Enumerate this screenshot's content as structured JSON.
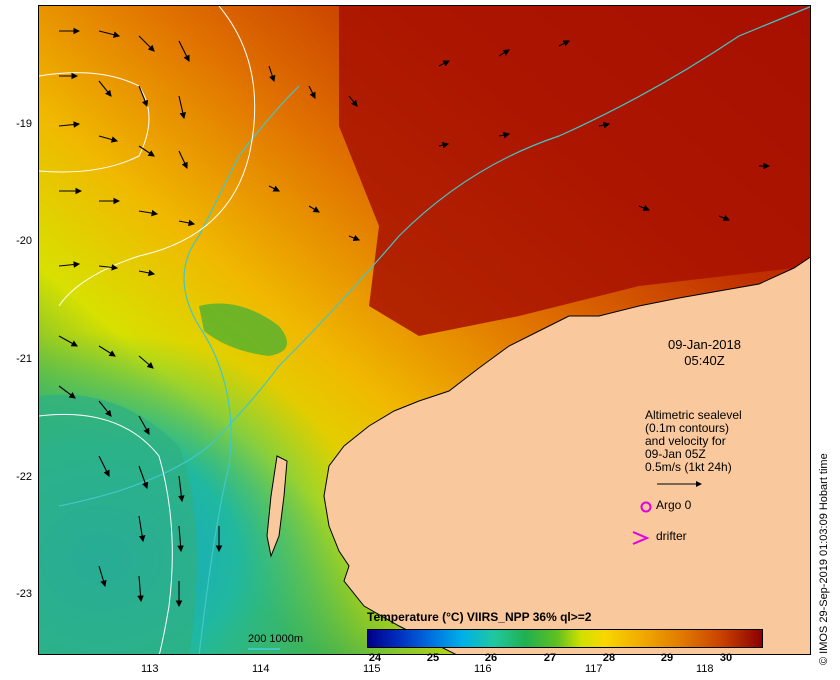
{
  "map": {
    "date": "09-Jan-2018",
    "time": "05:40Z",
    "legend_lines": [
      "Altimetric sealevel",
      "(0.1m contours)",
      "and velocity for",
      "09-Jan 05Z",
      "0.5m/s (1kt 24h)"
    ],
    "argo_label": "Argo 0",
    "drifter_label": "drifter",
    "colorbar_title": "Temperature (°C) VIIRS_NPP 36% ql>=2",
    "colorbar_ticks": [
      "24",
      "25",
      "26",
      "27",
      "28",
      "29",
      "30"
    ],
    "contour_key": "200  1000m",
    "credit": "© IMOS 29-Sep-2019 01:03:09 Hobart time",
    "x_ticks": [
      "113",
      "114",
      "115",
      "116",
      "117",
      "118"
    ],
    "y_ticks": [
      "-19",
      "-20",
      "-21",
      "-22",
      "-23"
    ],
    "colors": {
      "land": "#f9c89c",
      "accent_argo": "#e000e0",
      "bathymetry": "#40c8c8"
    }
  }
}
